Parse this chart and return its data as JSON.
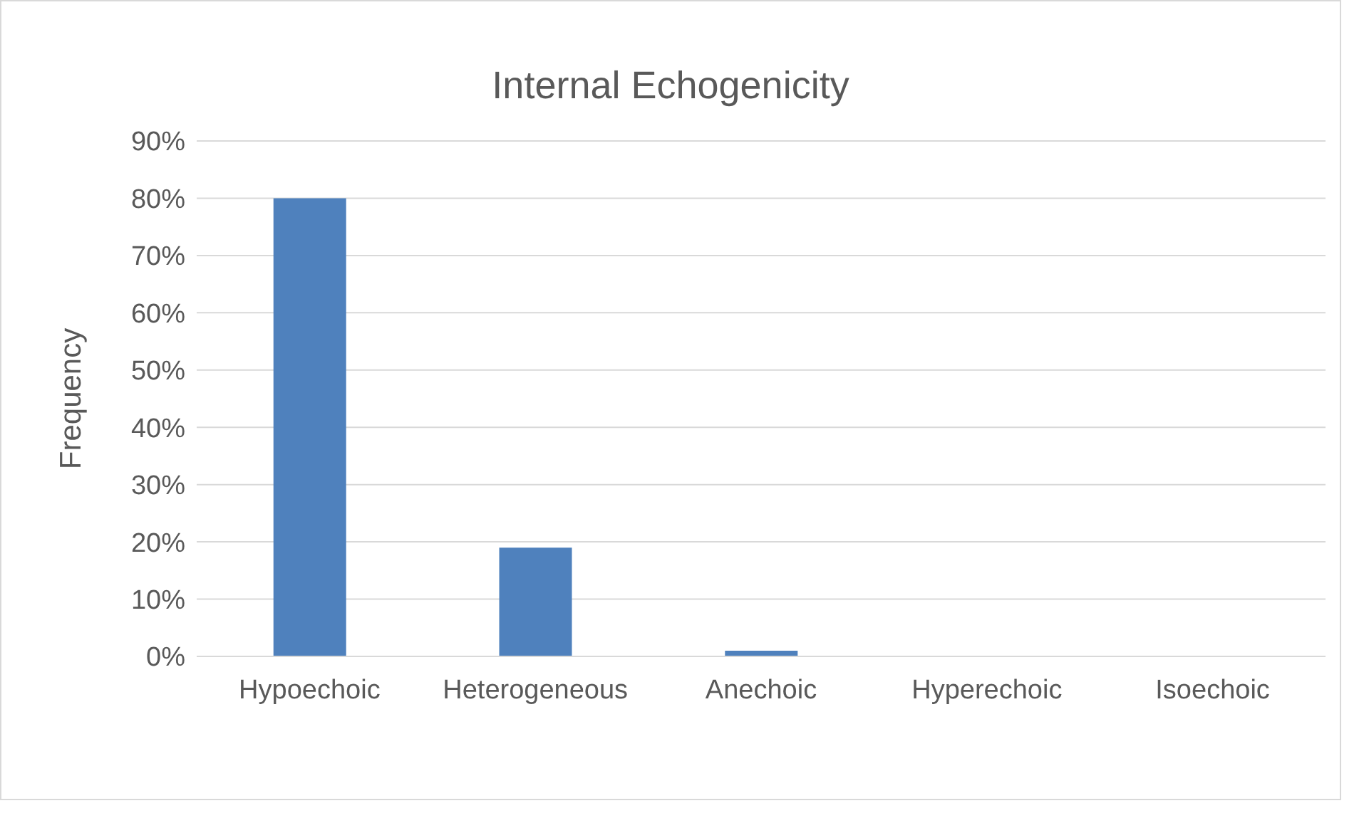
{
  "chart_data": {
    "type": "bar",
    "title": "Internal Echogenicity",
    "ylabel": "Frequency",
    "categories": [
      "Hypoechoic",
      "Heterogeneous",
      "Anechoic",
      "Hyperechoic",
      "Isoechoic"
    ],
    "values": [
      80,
      19,
      1,
      0,
      0
    ],
    "color": "#4f81bd",
    "ylim": [
      0,
      90
    ],
    "yticks": [
      {
        "value": 0,
        "label": "0%"
      },
      {
        "value": 10,
        "label": "10%"
      },
      {
        "value": 20,
        "label": "20%"
      },
      {
        "value": 30,
        "label": "30%"
      },
      {
        "value": 40,
        "label": "40%"
      },
      {
        "value": 50,
        "label": "50%"
      },
      {
        "value": 60,
        "label": "60%"
      },
      {
        "value": 70,
        "label": "70%"
      },
      {
        "value": 80,
        "label": "80%"
      },
      {
        "value": 90,
        "label": "90%"
      }
    ],
    "grid": "y",
    "legend": false
  }
}
